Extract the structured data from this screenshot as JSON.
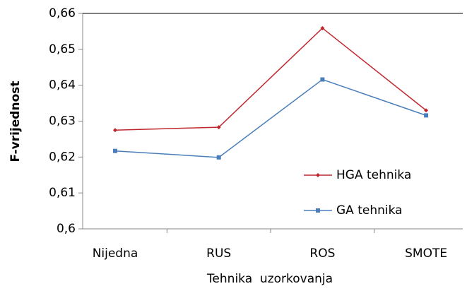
{
  "chart_data": {
    "type": "line",
    "x_label": "Tehnika  uzorkovanja",
    "y_label": "F-vrijednost",
    "categories": [
      "Nijedna",
      "RUS",
      "ROS",
      "SMOTE"
    ],
    "series": [
      {
        "name": "HGA tehnika",
        "color": "#c0262d",
        "marker": "diamond",
        "values": [
          0.6275,
          0.6283,
          0.6559,
          0.633
        ]
      },
      {
        "name": "GA tehnika",
        "color": "#4a7ebb",
        "marker": "square",
        "values": [
          0.6217,
          0.6199,
          0.6416,
          0.6316
        ]
      }
    ],
    "ylim": [
      0.6,
      0.66
    ],
    "yticks": [
      {
        "value": 0.6,
        "label": "0,6"
      },
      {
        "value": 0.61,
        "label": "0,61"
      },
      {
        "value": 0.62,
        "label": "0,62"
      },
      {
        "value": 0.63,
        "label": "0,63"
      },
      {
        "value": 0.64,
        "label": "0,64"
      },
      {
        "value": 0.65,
        "label": "0,65"
      },
      {
        "value": 0.66,
        "label": "0,66"
      }
    ],
    "legend": "lower right"
  }
}
